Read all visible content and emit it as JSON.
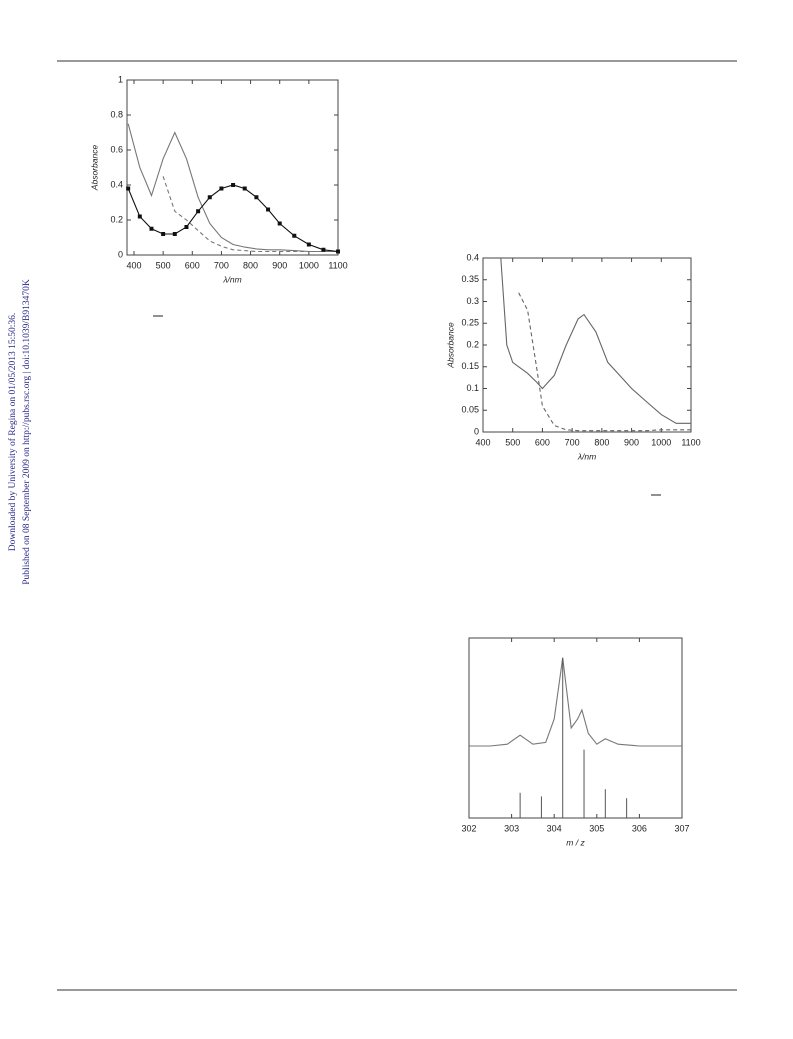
{
  "sidebar": {
    "downloaded": "Downloaded by University of Regina on 01/05/2013 15:50:36.",
    "published": "Published on 08 September 2009 on http://pubs.rsc.org | doi:10.1039/B913470K"
  },
  "chart_data": [
    {
      "type": "line",
      "xlabel": "λ/nm",
      "ylabel": "Absorbance",
      "x": [
        380,
        420,
        460,
        500,
        540,
        580,
        620,
        660,
        700,
        740,
        780,
        820,
        860,
        900,
        950,
        1000,
        1050,
        1100
      ],
      "series": [
        {
          "color": "#777777",
          "style": "solid",
          "values": [
            0.75,
            0.5,
            0.34,
            0.55,
            0.7,
            0.55,
            0.33,
            0.18,
            0.1,
            0.06,
            0.045,
            0.035,
            0.03,
            0.03,
            0.025,
            0.02,
            0.02,
            0.02
          ]
        },
        {
          "color": "#777777",
          "style": "dashed",
          "values": [
            null,
            null,
            null,
            0.45,
            0.25,
            0.2,
            0.14,
            0.08,
            0.05,
            0.03,
            0.025,
            0.02,
            0.02,
            0.02,
            0.02,
            0.02,
            0.02,
            0.02
          ]
        },
        {
          "color": "#111111",
          "style": "solid",
          "marker": "square",
          "values": [
            0.38,
            0.22,
            0.15,
            0.12,
            0.12,
            0.16,
            0.25,
            0.33,
            0.38,
            0.4,
            0.38,
            0.33,
            0.26,
            0.18,
            0.11,
            0.06,
            0.03,
            0.02
          ]
        }
      ],
      "xlim": [
        376,
        1100
      ],
      "xticks": [
        400,
        500,
        600,
        700,
        800,
        900,
        1000,
        1100
      ],
      "ylim": [
        0,
        1
      ],
      "yticks": [
        0,
        0.2,
        0.4,
        0.6,
        0.8,
        1
      ]
    },
    {
      "type": "line",
      "xlabel": "λ/nm",
      "ylabel": "Absorbance",
      "x": [
        460,
        480,
        500,
        520,
        550,
        580,
        600,
        640,
        680,
        720,
        740,
        780,
        820,
        860,
        900,
        950,
        1000,
        1050,
        1100
      ],
      "series": [
        {
          "color": "#666666",
          "style": "solid",
          "values": [
            0.4,
            0.2,
            0.16,
            0.15,
            0.135,
            0.115,
            0.1,
            0.13,
            0.2,
            0.26,
            0.27,
            0.23,
            0.16,
            0.13,
            0.1,
            0.07,
            0.04,
            0.02,
            0.02
          ]
        },
        {
          "color": "#666666",
          "style": "dashed",
          "values": [
            null,
            null,
            null,
            0.32,
            0.28,
            0.15,
            0.06,
            0.015,
            0.005,
            0.003,
            0.003,
            0.003,
            0.003,
            0.003,
            0.003,
            0.003,
            0.005,
            0.005,
            0.005
          ]
        }
      ],
      "xlim": [
        400,
        1100
      ],
      "xticks": [
        400,
        500,
        600,
        700,
        800,
        900,
        1000,
        1100
      ],
      "ylim": [
        0,
        0.4
      ],
      "yticks": [
        0,
        0.05,
        0.1,
        0.15,
        0.2,
        0.25,
        0.3,
        0.35,
        0.4
      ]
    },
    {
      "type": "line",
      "xlabel": "m / z",
      "series": [
        {
          "color": "#777777",
          "style": "solid",
          "x": [
            302,
            302.5,
            302.9,
            303.2,
            303.5,
            303.8,
            304,
            304.2,
            304.4,
            304.55,
            304.65,
            304.8,
            305,
            305.2,
            305.5,
            306,
            306.5,
            307
          ],
          "values": [
            0.4,
            0.4,
            0.41,
            0.46,
            0.41,
            0.42,
            0.55,
            0.89,
            0.5,
            0.55,
            0.6,
            0.47,
            0.41,
            0.44,
            0.41,
            0.4,
            0.4,
            0.4
          ]
        },
        {
          "color": "#555555",
          "style": "stick",
          "x": [
            303.2,
            303.7,
            304.2,
            304.7,
            305.2,
            305.7
          ],
          "values": [
            0.14,
            0.12,
            0.89,
            0.38,
            0.16,
            0.11
          ]
        }
      ],
      "xlim": [
        302,
        307
      ],
      "xticks": [
        302,
        303,
        304,
        305,
        306,
        307
      ],
      "ylim": [
        0,
        1
      ]
    }
  ]
}
